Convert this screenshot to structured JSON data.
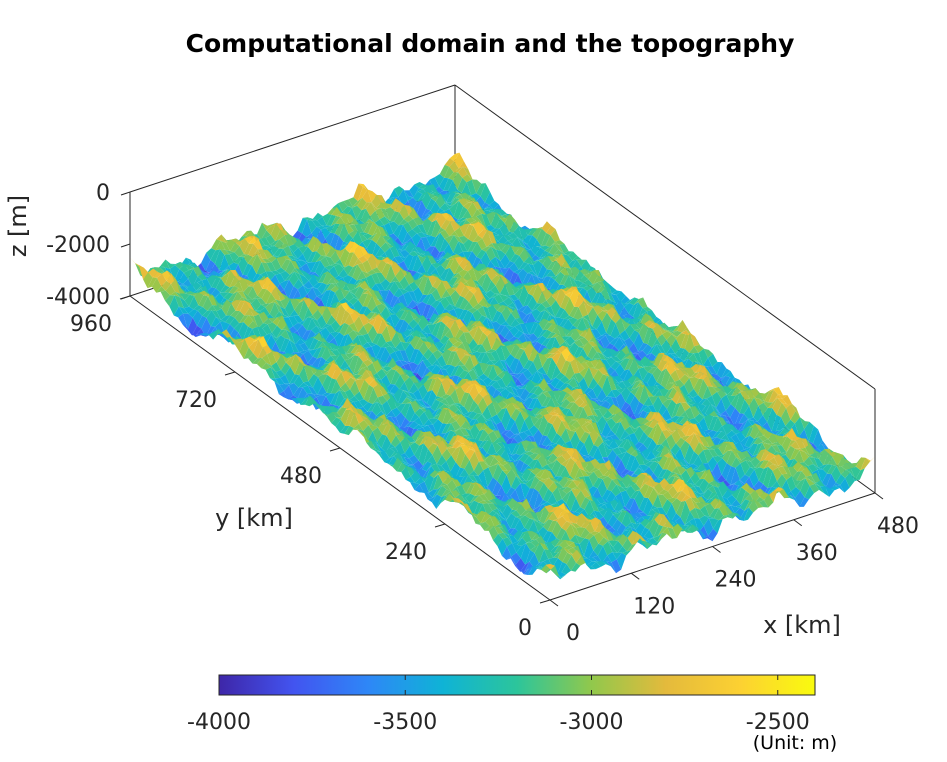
{
  "chart_data": {
    "type": "surface3d",
    "title": "Computational domain and the topography",
    "xlabel": "x [km]",
    "ylabel": "y [km]",
    "zlabel": "z [m]",
    "x_ticks": [
      "0",
      "120",
      "240",
      "360",
      "480"
    ],
    "y_ticks": [
      "0",
      "240",
      "480",
      "720",
      "960"
    ],
    "z_ticks": [
      "-4000",
      "-2000",
      "0"
    ],
    "xlim": [
      0,
      480
    ],
    "ylim": [
      0,
      960
    ],
    "zlim": [
      -4000,
      0
    ],
    "z_data_range": [
      -4000,
      -2450
    ],
    "colormap": "parula",
    "colorbar": {
      "orientation": "horizontal",
      "placement": "bottom",
      "ticks": [
        "-4000",
        "-3500",
        "-3000",
        "-2500"
      ],
      "range": [
        -4000,
        -2400
      ],
      "unit_label": "(Unit: m)"
    },
    "colors": [
      "#3e26a8",
      "#4254f0",
      "#2e87f7",
      "#0fb3d6",
      "#2cc59b",
      "#91c84c",
      "#e4ba3c",
      "#fcd132",
      "#f9fb0e"
    ]
  }
}
